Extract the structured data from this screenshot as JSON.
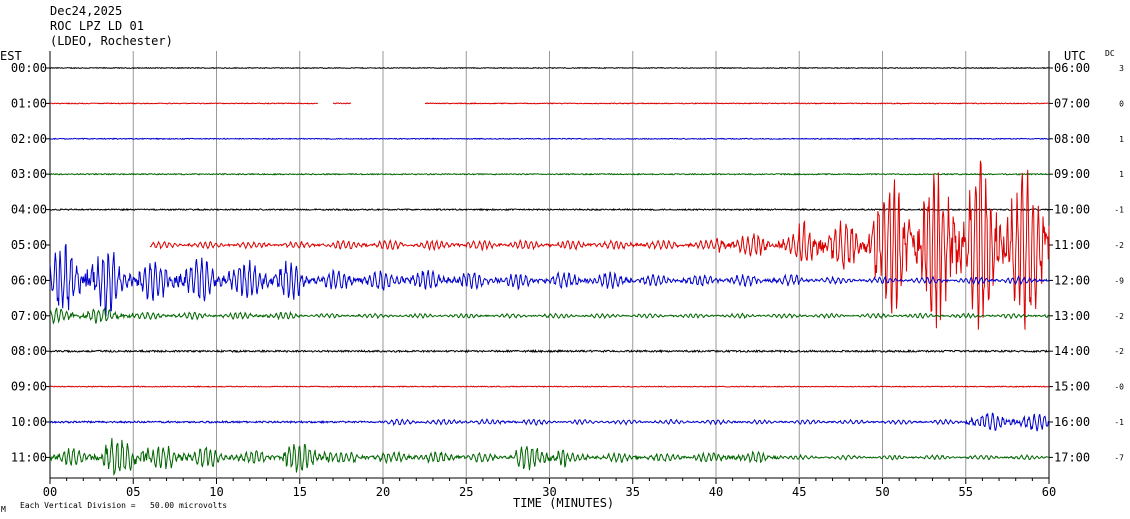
{
  "header": {
    "date": "Dec24,2025",
    "station": "ROC LPZ LD 01",
    "network": "(LDEO, Rochester)"
  },
  "left_axis_label": "EST",
  "right_axis_label": "UTC",
  "dc_label": "DC",
  "footer": {
    "scale_note": "Each Vertical Division =   50.00 microvolts",
    "corner_mark": "M"
  },
  "colors": {
    "black": "#000000",
    "red": "#dd0000",
    "blue": "#0000cc",
    "green": "#006600",
    "grid": "#999999"
  },
  "chart_data": {
    "type": "line",
    "title": "ROC LPZ LD 01",
    "xlabel": "TIME (MINUTES)",
    "x_ticks": [
      "00",
      "05",
      "10",
      "15",
      "20",
      "25",
      "30",
      "35",
      "40",
      "45",
      "50",
      "55",
      "60"
    ],
    "xlim": [
      0,
      60
    ],
    "grid": true,
    "rows": [
      {
        "est": "00:00",
        "utc": "06:00",
        "dc": "3",
        "color": "black",
        "activity": [
          [
            0,
            60,
            0.4
          ]
        ],
        "gaps": []
      },
      {
        "est": "01:00",
        "utc": "07:00",
        "dc": "0",
        "color": "red",
        "activity": [
          [
            0,
            60,
            0.4
          ]
        ],
        "gaps": [
          [
            16.1,
            17.0
          ],
          [
            18.1,
            22.5
          ]
        ]
      },
      {
        "est": "02:00",
        "utc": "08:00",
        "dc": "1",
        "color": "blue",
        "activity": [
          [
            0,
            60,
            0.4
          ]
        ],
        "gaps": []
      },
      {
        "est": "03:00",
        "utc": "09:00",
        "dc": "1",
        "color": "green",
        "activity": [
          [
            0,
            60,
            0.5
          ]
        ],
        "gaps": []
      },
      {
        "est": "04:00",
        "utc": "10:00",
        "dc": "-1",
        "color": "black",
        "activity": [
          [
            0,
            60,
            0.6
          ]
        ],
        "gaps": []
      },
      {
        "est": "05:00",
        "utc": "11:00",
        "dc": "-2",
        "color": "red",
        "activity": [
          [
            0,
            6,
            0.5
          ],
          [
            6,
            17,
            3
          ],
          [
            17,
            40,
            4
          ],
          [
            40,
            45,
            10
          ],
          [
            45,
            49,
            22
          ],
          [
            49,
            53,
            60
          ],
          [
            53,
            60,
            75
          ]
        ],
        "gaps": [
          [
            0,
            6
          ]
        ]
      },
      {
        "est": "06:00",
        "utc": "12:00",
        "dc": "-9",
        "color": "blue",
        "activity": [
          [
            0,
            4,
            30
          ],
          [
            4,
            15,
            18
          ],
          [
            15,
            25,
            9
          ],
          [
            25,
            35,
            7
          ],
          [
            35,
            45,
            5
          ],
          [
            45,
            60,
            3
          ]
        ],
        "gaps": []
      },
      {
        "est": "07:00",
        "utc": "13:00",
        "dc": "-2",
        "color": "green",
        "activity": [
          [
            0,
            5,
            7
          ],
          [
            5,
            15,
            3
          ],
          [
            15,
            60,
            2
          ]
        ],
        "gaps": []
      },
      {
        "est": "08:00",
        "utc": "14:00",
        "dc": "-2",
        "color": "black",
        "activity": [
          [
            0,
            60,
            0.8
          ]
        ],
        "gaps": []
      },
      {
        "est": "09:00",
        "utc": "15:00",
        "dc": "-0",
        "color": "red",
        "activity": [
          [
            0,
            60,
            0.4
          ]
        ],
        "gaps": []
      },
      {
        "est": "10:00",
        "utc": "16:00",
        "dc": "-1",
        "color": "blue",
        "activity": [
          [
            0,
            20,
            0.8
          ],
          [
            20,
            30,
            2.5
          ],
          [
            30,
            55,
            2
          ],
          [
            55,
            60,
            8
          ]
        ],
        "gaps": []
      },
      {
        "est": "11:00",
        "utc": "17:00",
        "dc": "-7",
        "color": "green",
        "activity": [
          [
            0,
            3,
            8
          ],
          [
            3,
            6,
            18
          ],
          [
            6,
            10,
            10
          ],
          [
            10,
            14,
            6
          ],
          [
            14,
            17,
            14
          ],
          [
            17,
            25,
            5
          ],
          [
            25,
            28,
            4
          ],
          [
            28,
            31,
            11
          ],
          [
            31,
            40,
            4
          ],
          [
            40,
            44,
            5
          ],
          [
            44,
            60,
            2
          ]
        ],
        "gaps": []
      }
    ],
    "scale": "Each Vertical Division =   50.00 microvolts"
  }
}
